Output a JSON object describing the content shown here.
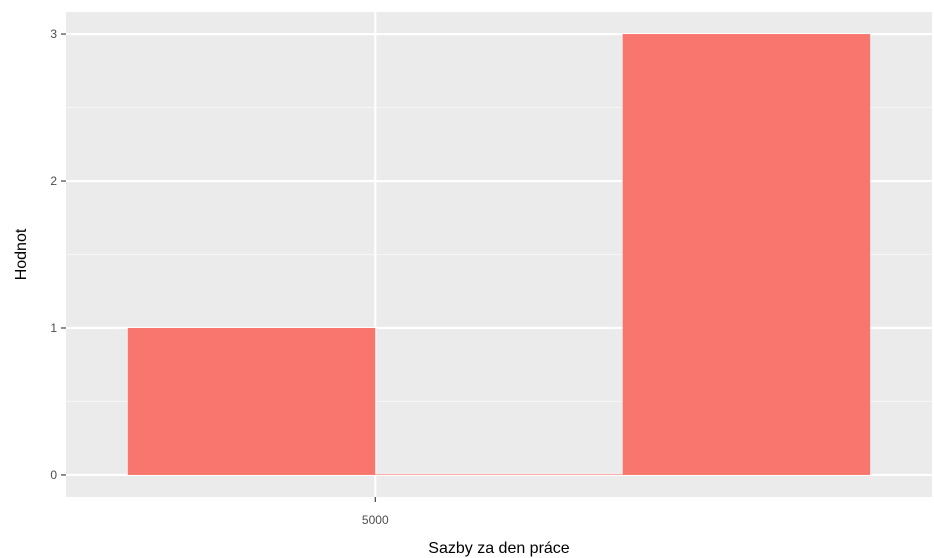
{
  "chart_data": {
    "type": "bar",
    "title": "",
    "xlabel": "Sazby za den práce",
    "ylabel": "Hodnot",
    "bins": [
      {
        "x0": 2500,
        "x1": 5000,
        "count": 1
      },
      {
        "x0": 5000,
        "x1": 7500,
        "count": 0
      },
      {
        "x0": 7500,
        "x1": 10000,
        "count": 3
      }
    ],
    "x_ticks": [
      5000
    ],
    "x_tick_labels": [
      "5000"
    ],
    "y_ticks": [
      0,
      1,
      2,
      3
    ],
    "y_tick_labels": [
      "0",
      "1",
      "2",
      "3"
    ],
    "xlim": [
      1875,
      10625
    ],
    "ylim": [
      -0.15,
      3.15
    ],
    "grid": true,
    "colors": {
      "bar": "#F8766D",
      "panel": "#EBEBEB",
      "grid_major": "#FFFFFF",
      "grid_minor": "#F5F5F5"
    }
  }
}
